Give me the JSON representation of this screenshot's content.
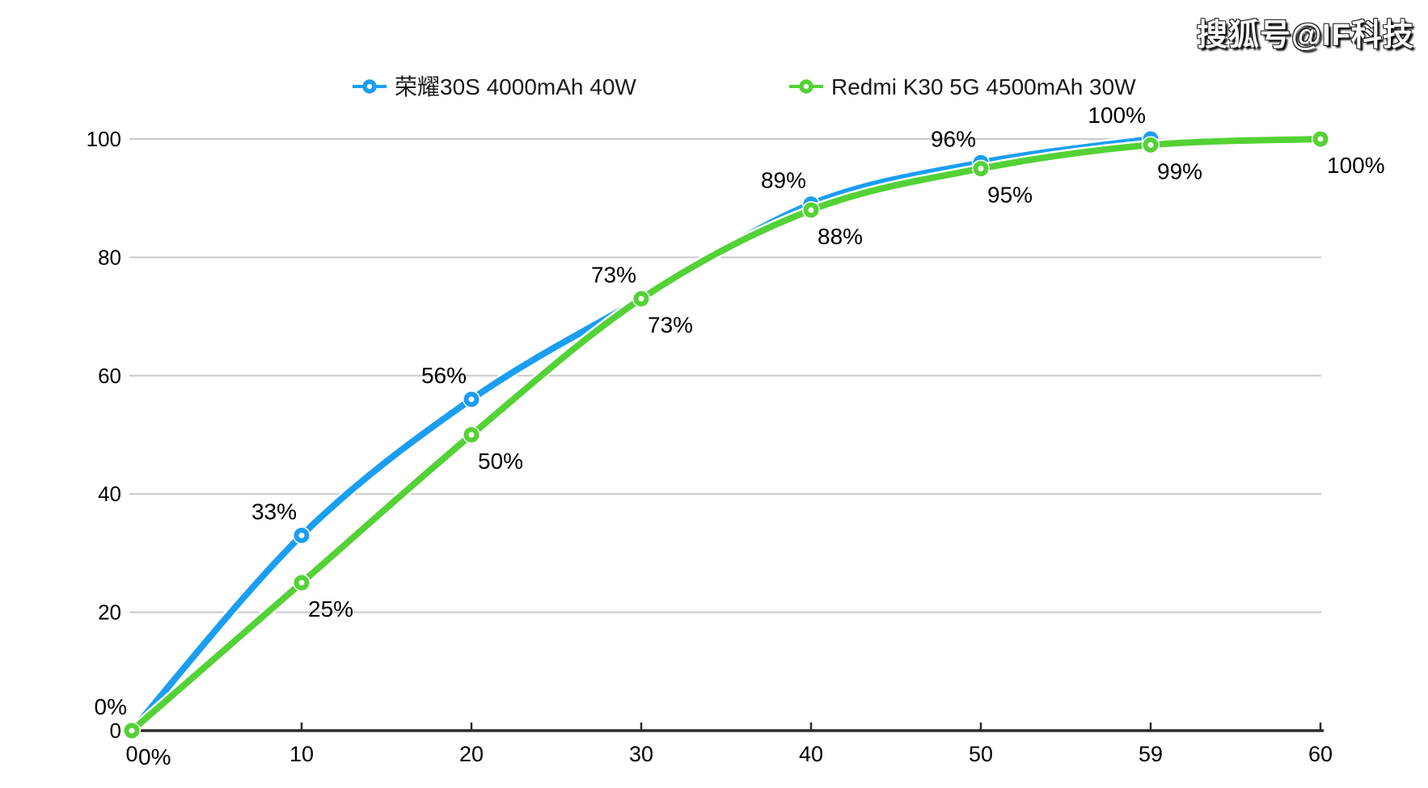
{
  "watermark": {
    "text": "搜狐号@IF科技"
  },
  "legend": {
    "position": "top-center",
    "items": [
      {
        "label": "荣耀30S 4000mAh 40W",
        "color": "#1A9EF2"
      },
      {
        "label": "Redmi K30 5G 4500mAh 30W",
        "color": "#53D235"
      }
    ]
  },
  "chart_data": {
    "type": "line",
    "title": "",
    "xlabel": "",
    "ylabel": "",
    "x_categories": [
      "0",
      "10",
      "20",
      "30",
      "40",
      "50",
      "59",
      "60"
    ],
    "y_ticks": [
      0,
      20,
      40,
      60,
      80,
      100
    ],
    "ylim": [
      0,
      100
    ],
    "grid": "horizontal-only",
    "gridline_color": "#c9c9c9",
    "axis_color": "#2b2b2b",
    "label_color": "#000000",
    "legend_position": "top-center",
    "series": [
      {
        "name": "荣耀30S 4000mAh 40W",
        "color": "#1A9EF2",
        "label_placement": "above-left",
        "points": [
          {
            "x": "0",
            "value": 0,
            "label": "0%"
          },
          {
            "x": "10",
            "value": 33,
            "label": "33%"
          },
          {
            "x": "20",
            "value": 56,
            "label": "56%"
          },
          {
            "x": "30",
            "value": 73,
            "label": "73%"
          },
          {
            "x": "40",
            "value": 89,
            "label": "89%"
          },
          {
            "x": "50",
            "value": 96,
            "label": "96%"
          },
          {
            "x": "59",
            "value": 100,
            "label": "100%"
          }
        ]
      },
      {
        "name": "Redmi K30 5G 4500mAh 30W",
        "color": "#53D235",
        "label_placement": "below-right",
        "points": [
          {
            "x": "0",
            "value": 0,
            "label": "0%"
          },
          {
            "x": "10",
            "value": 25,
            "label": "25%"
          },
          {
            "x": "20",
            "value": 50,
            "label": "50%"
          },
          {
            "x": "30",
            "value": 73,
            "label": "73%"
          },
          {
            "x": "40",
            "value": 88,
            "label": "88%"
          },
          {
            "x": "50",
            "value": 95,
            "label": "95%"
          },
          {
            "x": "59",
            "value": 99,
            "label": "99%"
          },
          {
            "x": "60",
            "value": 100,
            "label": "100%"
          }
        ]
      }
    ]
  }
}
